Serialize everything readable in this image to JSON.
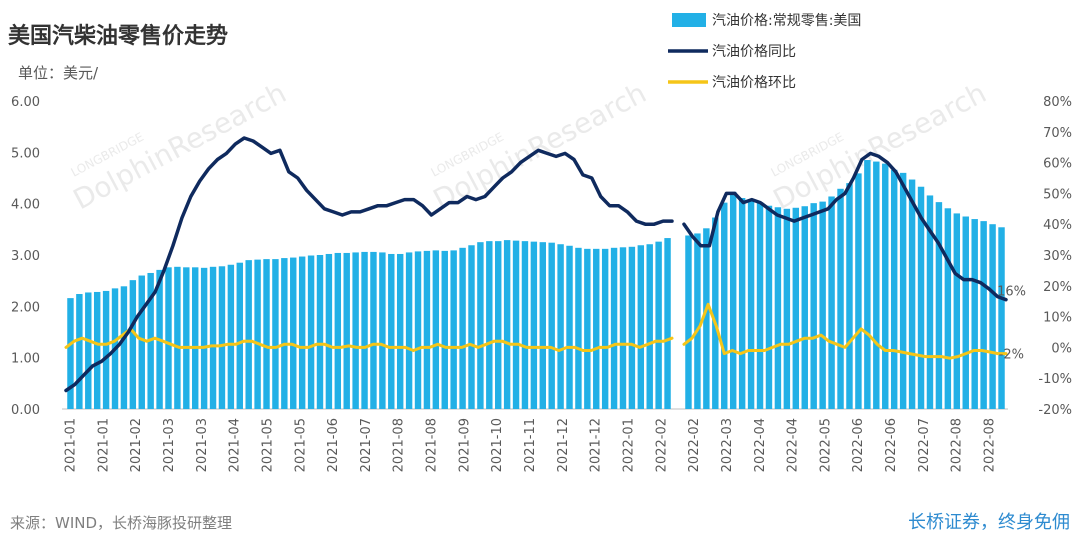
{
  "title": "美国汽柴油零售价走势",
  "unit_label": "单位：美元/",
  "source": "来源：WIND，长桥海豚投研整理",
  "slogan": "长桥证券，终身免佣",
  "watermark": {
    "main": "DolphinResearch",
    "sub": "LONGBRIDGE"
  },
  "colors": {
    "bar": "#22b0e6",
    "yoy": "#0f2a5e",
    "mom": "#f5c518"
  },
  "chart_data": {
    "type": "bar",
    "title": "美国汽柴油零售价走势",
    "legend_position": "top-right",
    "left_axis": {
      "ylim": [
        0,
        6
      ],
      "ticks": [
        "0.00",
        "1.00",
        "2.00",
        "3.00",
        "4.00",
        "5.00",
        "6.00"
      ]
    },
    "right_axis": {
      "ylim": [
        -20,
        80
      ],
      "ticks": [
        "-20%",
        "-10%",
        "0%",
        "10%",
        "20%",
        "30%",
        "40%",
        "50%",
        "60%",
        "70%",
        "80%"
      ]
    },
    "categories": [
      "2021-01",
      "2021-01",
      "2021-02",
      "2021-03",
      "2021-03",
      "2021-04",
      "2021-05",
      "2021-05",
      "2021-06",
      "2021-07",
      "2021-08",
      "2021-08",
      "2021-09",
      "2021-10",
      "2021-11",
      "2021-12",
      "2021-12",
      "2022-01",
      "2022-02",
      "2022-02",
      "2022-03",
      "2022-04",
      "2022-04",
      "2022-05",
      "2022-06",
      "2022-06",
      "2022-07",
      "2022-08",
      "2022-08"
    ],
    "series": [
      {
        "name": "汽油价格:常规零售:美国",
        "kind": "bar",
        "axis": "left",
        "segments": [
          [
            2.16,
            2.24,
            2.27,
            2.28,
            2.3,
            2.35,
            2.39,
            2.51,
            2.6,
            2.65,
            2.71,
            2.76,
            2.77,
            2.76,
            2.76,
            2.75,
            2.77,
            2.78,
            2.81,
            2.85,
            2.9,
            2.91,
            2.92,
            2.92,
            2.94,
            2.95,
            2.97,
            2.99,
            3.0,
            3.02,
            3.04,
            3.04,
            3.05,
            3.06,
            3.06,
            3.05,
            3.02,
            3.02,
            3.05,
            3.07,
            3.08,
            3.09,
            3.08,
            3.09,
            3.14,
            3.19,
            3.25,
            3.27,
            3.27,
            3.29,
            3.28,
            3.27,
            3.26,
            3.25,
            3.24,
            3.21,
            3.18,
            3.14,
            3.12,
            3.12,
            3.12,
            3.14,
            3.15,
            3.16,
            3.19,
            3.21,
            3.26,
            3.33
          ],
          [
            3.38,
            3.42,
            3.52,
            3.73,
            4.02,
            4.23,
            4.11,
            4.06,
            4.02,
            3.96,
            3.93,
            3.9,
            3.92,
            3.95,
            4.01,
            4.04,
            4.14,
            4.29,
            4.4,
            4.59,
            4.85,
            4.82,
            4.78,
            4.66,
            4.6,
            4.47,
            4.33,
            4.16,
            4.03,
            3.91,
            3.81,
            3.75,
            3.7,
            3.66,
            3.6,
            3.54
          ]
        ]
      },
      {
        "name": "汽油价格同比",
        "kind": "line",
        "axis": "right",
        "label": "16%",
        "segments": [
          [
            -14,
            -12,
            -9,
            -6,
            -4.5,
            -2,
            1,
            5,
            10,
            14,
            18,
            25,
            33,
            42,
            49,
            54,
            58,
            61,
            63,
            66,
            68,
            67,
            65,
            63,
            64,
            57,
            55,
            51,
            48,
            45,
            44,
            43,
            44,
            44,
            45,
            46,
            46,
            47,
            48,
            48,
            46,
            43,
            45,
            47,
            47,
            49,
            48,
            49,
            52,
            55,
            57,
            60,
            62,
            64,
            63,
            62,
            63,
            61,
            56,
            55,
            49,
            46,
            46,
            44,
            41,
            40,
            40,
            41,
            41
          ],
          [
            40,
            36,
            33,
            33,
            44,
            50,
            50,
            47,
            48,
            47,
            45,
            43,
            42,
            41,
            42,
            43,
            44,
            45,
            48,
            50,
            55,
            61,
            63,
            62,
            60,
            57,
            52,
            47,
            42,
            38,
            34,
            29,
            24,
            22,
            22,
            21,
            19,
            16.5,
            15.5
          ]
        ]
      },
      {
        "name": "汽油价格环比",
        "kind": "line",
        "axis": "right",
        "label": "-2%",
        "segments": [
          [
            0,
            2,
            3,
            2,
            1,
            1,
            2,
            4,
            6,
            3,
            2,
            3,
            2,
            1,
            0,
            0,
            0,
            0,
            0.5,
            0.5,
            1,
            1,
            2,
            2,
            1,
            0,
            0,
            1,
            1,
            0,
            0,
            1,
            1,
            0,
            0,
            0.5,
            0,
            0,
            1,
            1,
            0,
            0,
            0,
            -1,
            0,
            0,
            1,
            0,
            0,
            0,
            1,
            0,
            1,
            2,
            2,
            1,
            1,
            0,
            0,
            0,
            0,
            -1,
            0,
            0,
            -1,
            -1,
            0,
            0,
            1,
            1,
            1,
            0,
            1,
            2,
            2,
            3
          ],
          [
            1,
            3,
            7,
            14,
            7,
            -2,
            -1,
            -2,
            -1,
            -1,
            -1,
            0,
            1,
            1,
            2,
            3,
            3,
            4,
            2,
            1,
            0,
            3,
            6,
            4,
            1,
            -1,
            -1,
            -1.5,
            -2,
            -2.5,
            -3,
            -3,
            -3,
            -3.5,
            -3,
            -2,
            -1,
            -1,
            -1.5,
            -2,
            -2
          ]
        ]
      }
    ]
  }
}
